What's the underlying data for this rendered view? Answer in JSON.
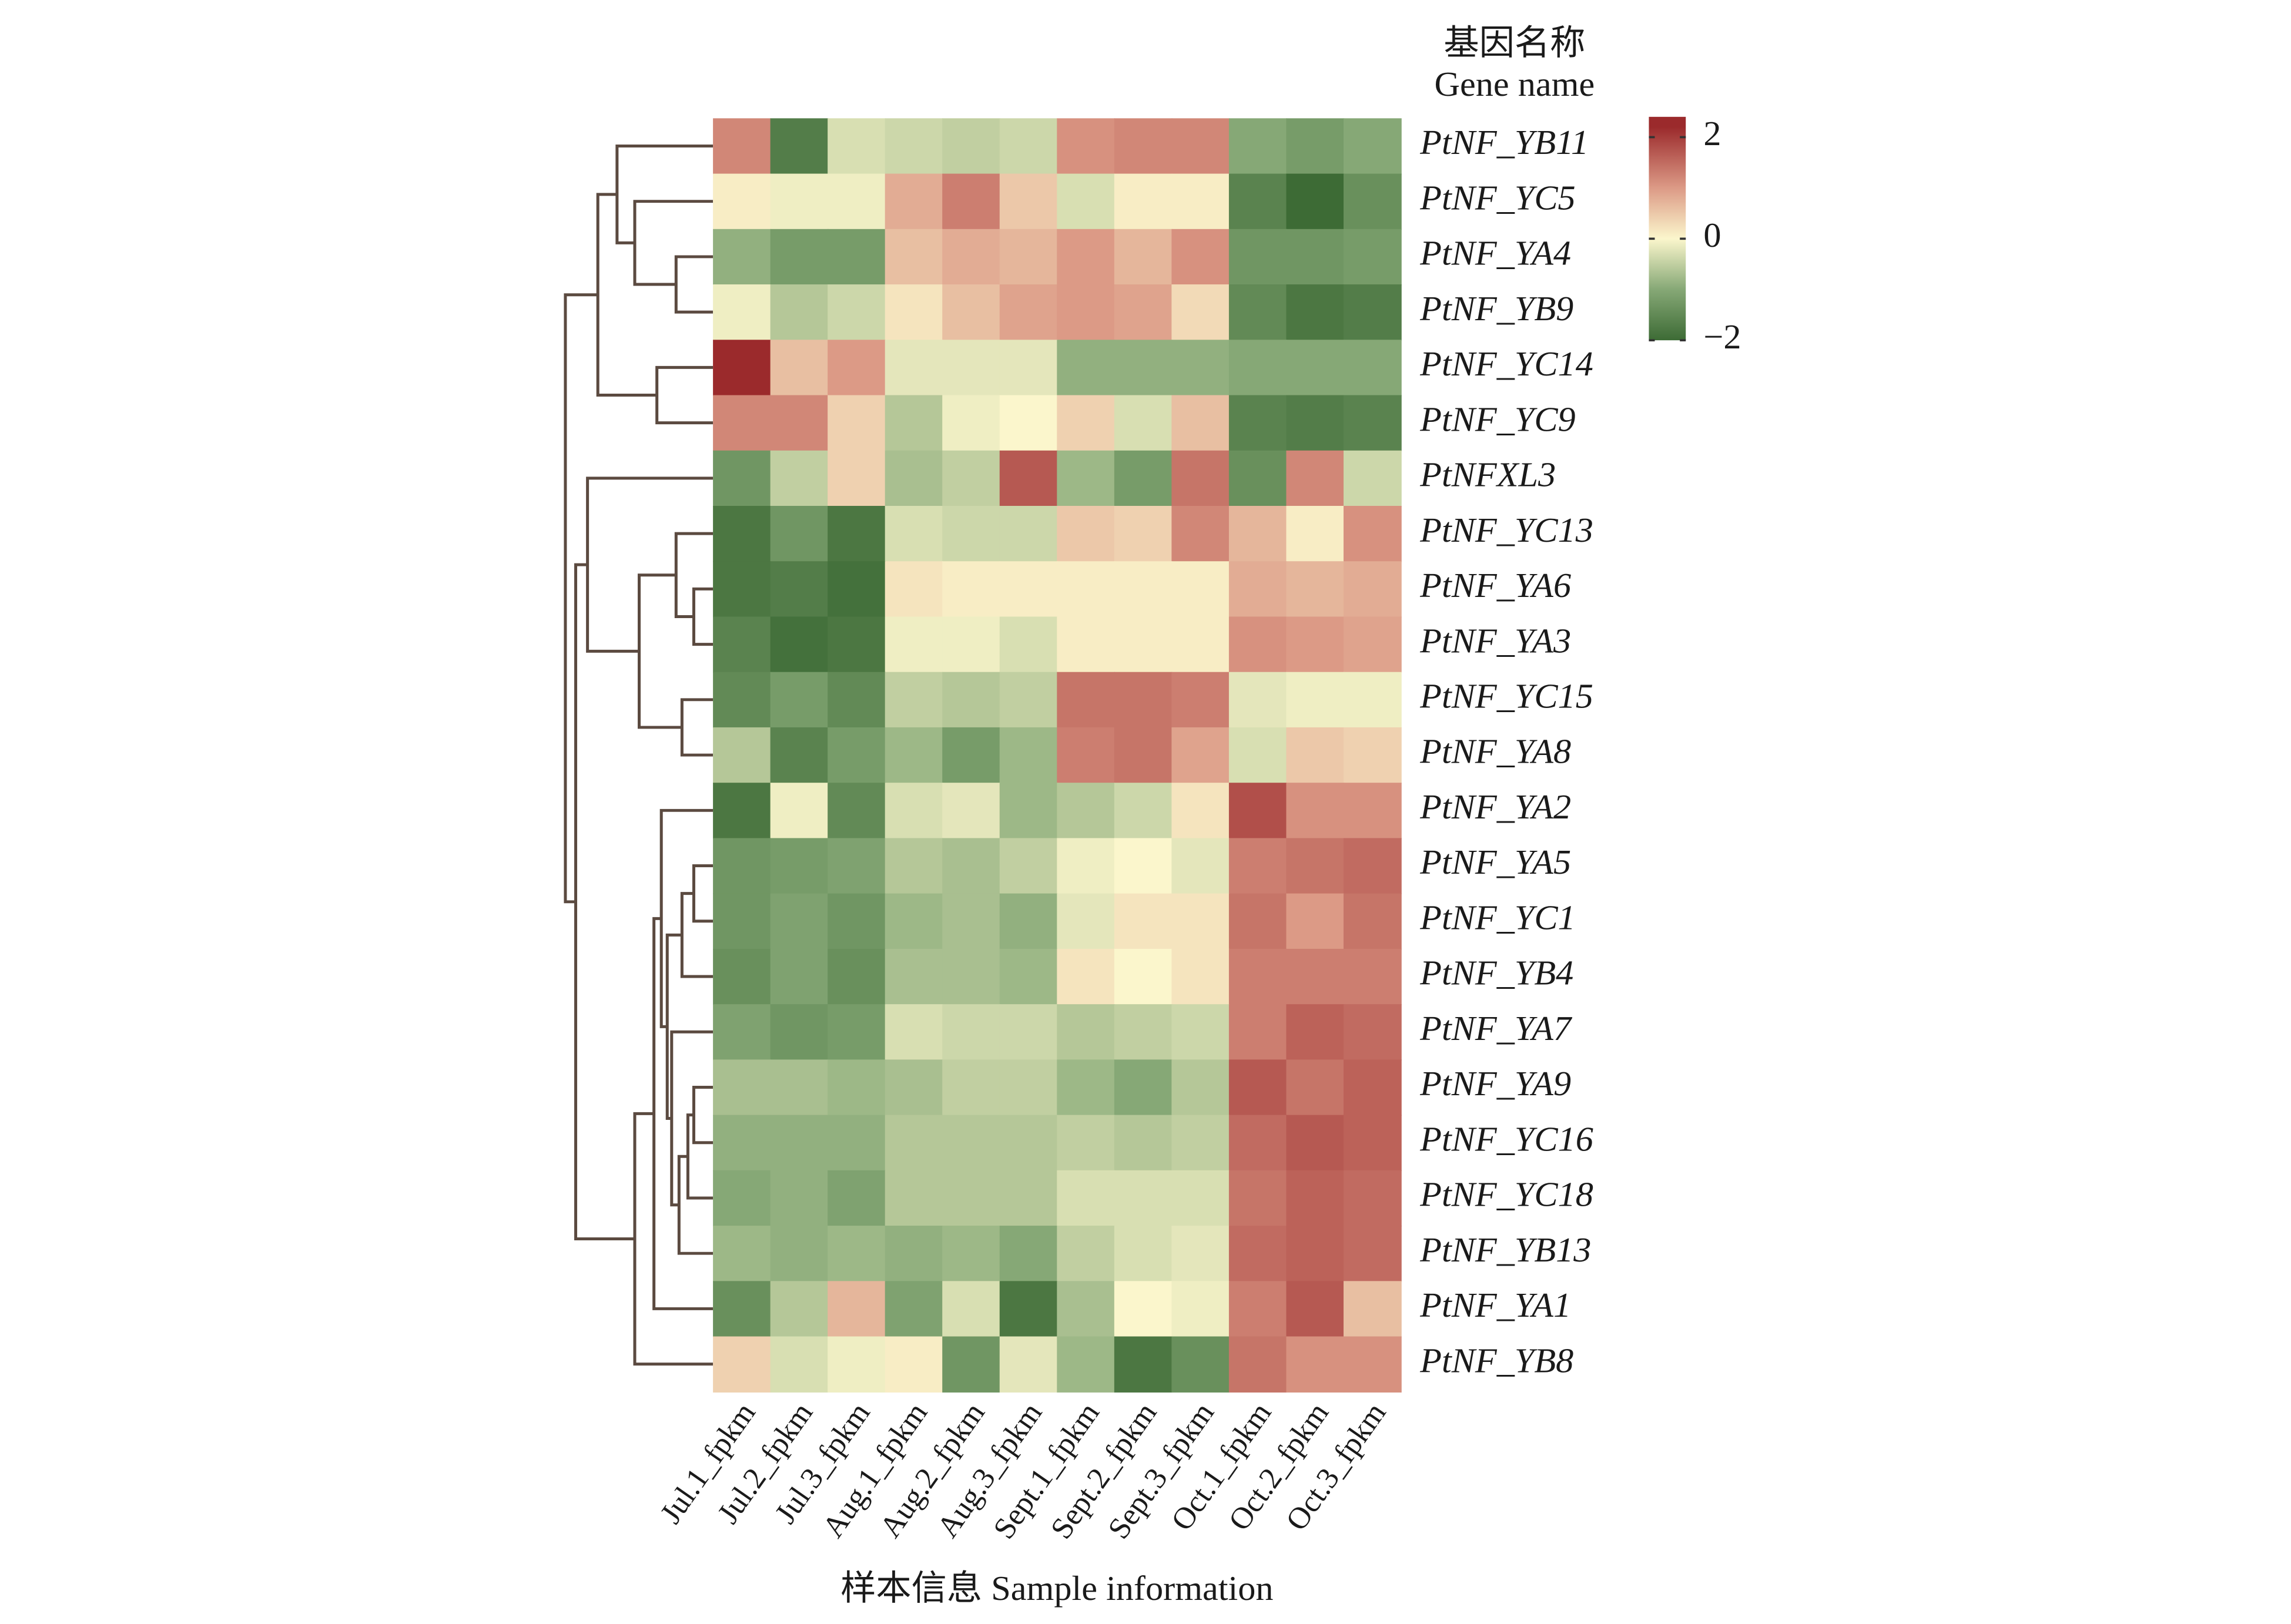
{
  "chart_data": {
    "type": "heatmap",
    "gene_axis_label": [
      "基因名称",
      "Gene name"
    ],
    "x_label": "样本信息 Sample information",
    "categories": [
      "Jul.1_fpkm",
      "Jul.2_fpkm",
      "Jul.3_fpkm",
      "Aug.1_fpkm",
      "Aug.2_fpkm",
      "Aug.3_fpkm",
      "Sept.1_fpkm",
      "Sept.2_fpkm",
      "Sept.3_fpkm",
      "Oct.1_fpkm",
      "Oct.2_fpkm",
      "Oct.3_fpkm"
    ],
    "series": [
      {
        "name": "PtNF_YB11",
        "values": [
          1.2,
          -1.7,
          -0.3,
          -0.4,
          -0.5,
          -0.4,
          1.1,
          1.2,
          1.2,
          -1.0,
          -1.2,
          -1.0
        ]
      },
      {
        "name": "PtNF_YC5",
        "values": [
          0.1,
          -0.1,
          -0.1,
          0.8,
          1.3,
          0.5,
          -0.3,
          0.1,
          0.1,
          -1.6,
          -2.0,
          -1.4
        ]
      },
      {
        "name": "PtNF_YA4",
        "values": [
          -0.9,
          -1.2,
          -1.2,
          0.6,
          0.8,
          0.7,
          1.0,
          0.7,
          1.1,
          -1.3,
          -1.3,
          -1.2
        ]
      },
      {
        "name": "PtNF_YB9",
        "values": [
          -0.1,
          -0.6,
          -0.4,
          0.2,
          0.6,
          0.9,
          1.0,
          0.9,
          0.3,
          -1.5,
          -1.8,
          -1.7
        ]
      },
      {
        "name": "PtNF_YC14",
        "values": [
          2.3,
          0.6,
          1.0,
          -0.2,
          -0.2,
          -0.2,
          -0.9,
          -0.9,
          -0.9,
          -1.0,
          -1.0,
          -1.0
        ]
      },
      {
        "name": "PtNF_YC9",
        "values": [
          1.2,
          1.2,
          0.4,
          -0.6,
          -0.1,
          0.0,
          0.4,
          -0.3,
          0.6,
          -1.6,
          -1.7,
          -1.6
        ]
      },
      {
        "name": "PtNFXL3",
        "values": [
          -1.3,
          -0.5,
          0.4,
          -0.7,
          -0.5,
          1.7,
          -0.8,
          -1.2,
          1.4,
          -1.4,
          1.2,
          -0.4
        ]
      },
      {
        "name": "PtNF_YC13",
        "values": [
          -1.8,
          -1.3,
          -1.8,
          -0.3,
          -0.4,
          -0.4,
          0.5,
          0.4,
          1.2,
          0.7,
          0.1,
          1.1
        ]
      },
      {
        "name": "PtNF_YA6",
        "values": [
          -1.8,
          -1.7,
          -1.9,
          0.2,
          0.1,
          0.1,
          0.1,
          0.1,
          0.1,
          0.8,
          0.7,
          0.8
        ]
      },
      {
        "name": "PtNF_YA3",
        "values": [
          -1.6,
          -1.9,
          -1.8,
          -0.1,
          -0.1,
          -0.3,
          0.1,
          0.1,
          0.1,
          1.1,
          1.0,
          0.9
        ]
      },
      {
        "name": "PtNF_YC15",
        "values": [
          -1.5,
          -1.2,
          -1.5,
          -0.5,
          -0.6,
          -0.5,
          1.4,
          1.4,
          1.3,
          -0.2,
          -0.1,
          -0.1
        ]
      },
      {
        "name": "PtNF_YA8",
        "values": [
          -0.6,
          -1.6,
          -1.2,
          -0.8,
          -1.2,
          -0.8,
          1.3,
          1.4,
          0.9,
          -0.3,
          0.5,
          0.4
        ]
      },
      {
        "name": "PtNF_YA2",
        "values": [
          -1.8,
          -0.1,
          -1.5,
          -0.3,
          -0.2,
          -0.8,
          -0.6,
          -0.4,
          0.2,
          1.8,
          1.1,
          1.1
        ]
      },
      {
        "name": "PtNF_YA5",
        "values": [
          -1.3,
          -1.2,
          -1.1,
          -0.6,
          -0.7,
          -0.5,
          -0.1,
          0.0,
          -0.2,
          1.3,
          1.4,
          1.5
        ]
      },
      {
        "name": "PtNF_YC1",
        "values": [
          -1.3,
          -1.1,
          -1.3,
          -0.8,
          -0.7,
          -0.9,
          -0.2,
          0.2,
          0.2,
          1.4,
          1.0,
          1.4
        ]
      },
      {
        "name": "PtNF_YB4",
        "values": [
          -1.4,
          -1.1,
          -1.4,
          -0.7,
          -0.7,
          -0.8,
          0.2,
          0.0,
          0.2,
          1.3,
          1.3,
          1.3
        ]
      },
      {
        "name": "PtNF_YA7",
        "values": [
          -1.1,
          -1.3,
          -1.2,
          -0.3,
          -0.4,
          -0.4,
          -0.6,
          -0.5,
          -0.4,
          1.3,
          1.6,
          1.5
        ]
      },
      {
        "name": "PtNF_YA9",
        "values": [
          -0.7,
          -0.7,
          -0.8,
          -0.7,
          -0.5,
          -0.5,
          -0.8,
          -1.0,
          -0.6,
          1.7,
          1.4,
          1.6
        ]
      },
      {
        "name": "PtNF_YC16",
        "values": [
          -0.9,
          -0.9,
          -0.9,
          -0.6,
          -0.6,
          -0.6,
          -0.5,
          -0.6,
          -0.5,
          1.5,
          1.7,
          1.6
        ]
      },
      {
        "name": "PtNF_YC18",
        "values": [
          -1.0,
          -0.9,
          -1.1,
          -0.6,
          -0.6,
          -0.6,
          -0.3,
          -0.3,
          -0.3,
          1.4,
          1.6,
          1.5
        ]
      },
      {
        "name": "PtNF_YB13",
        "values": [
          -0.8,
          -0.9,
          -0.8,
          -0.9,
          -0.8,
          -1.0,
          -0.5,
          -0.3,
          -0.2,
          1.5,
          1.6,
          1.5
        ]
      },
      {
        "name": "PtNF_YA1",
        "values": [
          -1.4,
          -0.6,
          0.7,
          -1.1,
          -0.3,
          -1.8,
          -0.7,
          0.0,
          -0.1,
          1.3,
          1.7,
          0.6
        ]
      },
      {
        "name": "PtNF_YB8",
        "values": [
          0.4,
          -0.3,
          -0.1,
          0.1,
          -1.3,
          -0.2,
          -0.8,
          -1.8,
          -1.4,
          1.4,
          1.1,
          1.1
        ]
      }
    ],
    "clim": [
      -2,
      2.4
    ],
    "cticks": [
      2,
      0,
      {
        "value": -2,
        "label": "−2"
      }
    ],
    "colormap": [
      {
        "value": -2,
        "color": "#3d6b35"
      },
      {
        "value": -1,
        "color": "#86a876"
      },
      {
        "value": 0,
        "color": "#fbf6cc"
      },
      {
        "value": 1,
        "color": "#dc9a86"
      },
      {
        "value": 2.2,
        "color": "#9b2a2c"
      }
    ]
  }
}
